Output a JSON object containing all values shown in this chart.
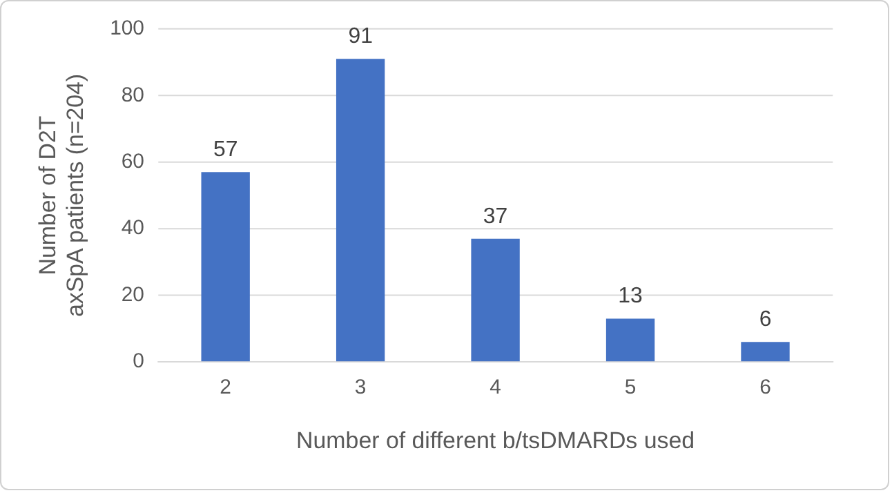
{
  "chart_data": {
    "type": "bar",
    "xlabel": "Number of different b/tsDMARDs used",
    "ylabel": "Number of D2T\naxSpA patients (n=204)",
    "categories": [
      "2",
      "3",
      "4",
      "5",
      "6"
    ],
    "values": [
      57,
      91,
      37,
      13,
      6
    ],
    "color": "#4472c4",
    "ylim": [
      0,
      100
    ],
    "yticks": [
      0,
      20,
      40,
      60,
      80,
      100
    ],
    "grid": "y",
    "data_labels": true,
    "legend": false
  }
}
